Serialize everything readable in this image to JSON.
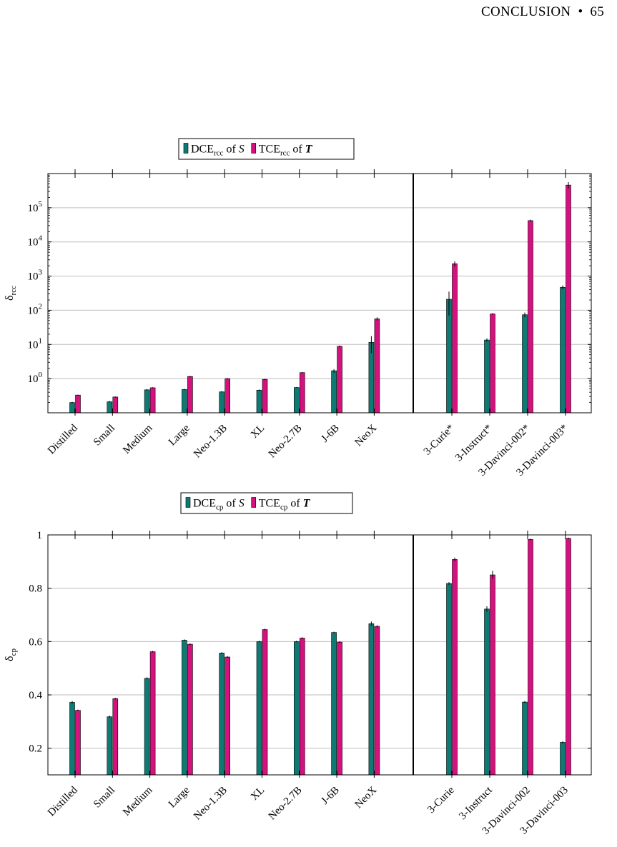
{
  "header": {
    "section": "CONCLUSION",
    "separator": "•",
    "page": "65"
  },
  "colors": {
    "dce": "#0f7a74",
    "tce": "#d4127e",
    "grid": "#bdbdbd"
  },
  "chart_data": [
    {
      "type": "bar",
      "yscale": "log",
      "ylabel": "δ",
      "ylabel_sub": "rcc",
      "ylim": [
        0.1,
        1000000
      ],
      "yticks": [
        {
          "value": 1,
          "base": "10",
          "exp": "0"
        },
        {
          "value": 10,
          "base": "10",
          "exp": "1"
        },
        {
          "value": 100,
          "base": "10",
          "exp": "2"
        },
        {
          "value": 1000,
          "base": "10",
          "exp": "3"
        },
        {
          "value": 10000,
          "base": "10",
          "exp": "4"
        },
        {
          "value": 100000,
          "base": "10",
          "exp": "5"
        }
      ],
      "legend": [
        {
          "pre": "DCE",
          "sub": "rcc",
          "post": " of ",
          "var": "S",
          "var_bold": false,
          "series": "dce"
        },
        {
          "pre": "TCE",
          "sub": "rcc",
          "post": " of ",
          "var": "T",
          "var_bold": true,
          "series": "tce"
        }
      ],
      "legend_position": "top-center",
      "categories": [
        "Distilled",
        "Small",
        "Medium",
        "Large",
        "Neo-1.3B",
        "XL",
        "Neo-2.7B",
        "J-6B",
        "NeoX",
        "3-Curie*",
        "3-Instruct*",
        "3-Davinci-002*",
        "3-Davinci-003*"
      ],
      "divider_after_index": 8,
      "series": [
        {
          "key": "dce",
          "values": [
            0.2,
            0.21,
            0.47,
            0.48,
            0.41,
            0.46,
            0.55,
            1.7,
            11.5,
            210,
            13.5,
            74,
            470
          ],
          "err": [
            0.01,
            0.01,
            0.02,
            0.02,
            0.02,
            0.02,
            0.02,
            0.2,
            6,
            140,
            1.5,
            12,
            60
          ]
        },
        {
          "key": "tce",
          "values": [
            0.33,
            0.29,
            0.54,
            1.15,
            1.0,
            0.95,
            1.5,
            8.8,
            56,
            2300,
            78,
            42000,
            460000
          ],
          "err": [
            0.01,
            0.01,
            0.02,
            0.05,
            0.04,
            0.04,
            0.06,
            0.5,
            6,
            400,
            4,
            2500,
            100000
          ]
        }
      ]
    },
    {
      "type": "bar",
      "yscale": "linear",
      "ylabel": "δ",
      "ylabel_sub": "cp",
      "ylim": [
        0.1,
        1.0
      ],
      "yticks": [
        {
          "value": 0.2,
          "label": "0.2"
        },
        {
          "value": 0.4,
          "label": "0.4"
        },
        {
          "value": 0.6,
          "label": "0.6"
        },
        {
          "value": 0.8,
          "label": "0.8"
        },
        {
          "value": 1.0,
          "label": "1"
        }
      ],
      "legend": [
        {
          "pre": "DCE",
          "sub": "cp",
          "post": " of ",
          "var": "S",
          "var_bold": false,
          "series": "dce"
        },
        {
          "pre": "TCE",
          "sub": "cp",
          "post": " of ",
          "var": "T",
          "var_bold": true,
          "series": "tce"
        }
      ],
      "legend_position": "top-center",
      "categories": [
        "Distilled",
        "Small",
        "Medium",
        "Large",
        "Neo-1.3B",
        "XL",
        "Neo-2.7B",
        "J-6B",
        "NeoX",
        "3-Curie",
        "3-Instruct",
        "3-Davinci-002",
        "3-Davinci-003"
      ],
      "divider_after_index": 8,
      "series": [
        {
          "key": "dce",
          "values": [
            0.372,
            0.318,
            0.462,
            0.605,
            0.557,
            0.6,
            0.6,
            0.634,
            0.667,
            0.818,
            0.722,
            0.373,
            0.222
          ],
          "err": [
            0.005,
            0.004,
            0.004,
            0.003,
            0.003,
            0.003,
            0.003,
            0.003,
            0.008,
            0.005,
            0.01,
            0.004,
            0.004
          ]
        },
        {
          "key": "tce",
          "values": [
            0.342,
            0.386,
            0.562,
            0.59,
            0.542,
            0.645,
            0.613,
            0.598,
            0.657,
            0.908,
            0.85,
            0.983,
            0.987
          ],
          "err": [
            0.003,
            0.003,
            0.003,
            0.003,
            0.003,
            0.003,
            0.003,
            0.003,
            0.004,
            0.007,
            0.015,
            0.003,
            0.003
          ]
        }
      ]
    }
  ]
}
